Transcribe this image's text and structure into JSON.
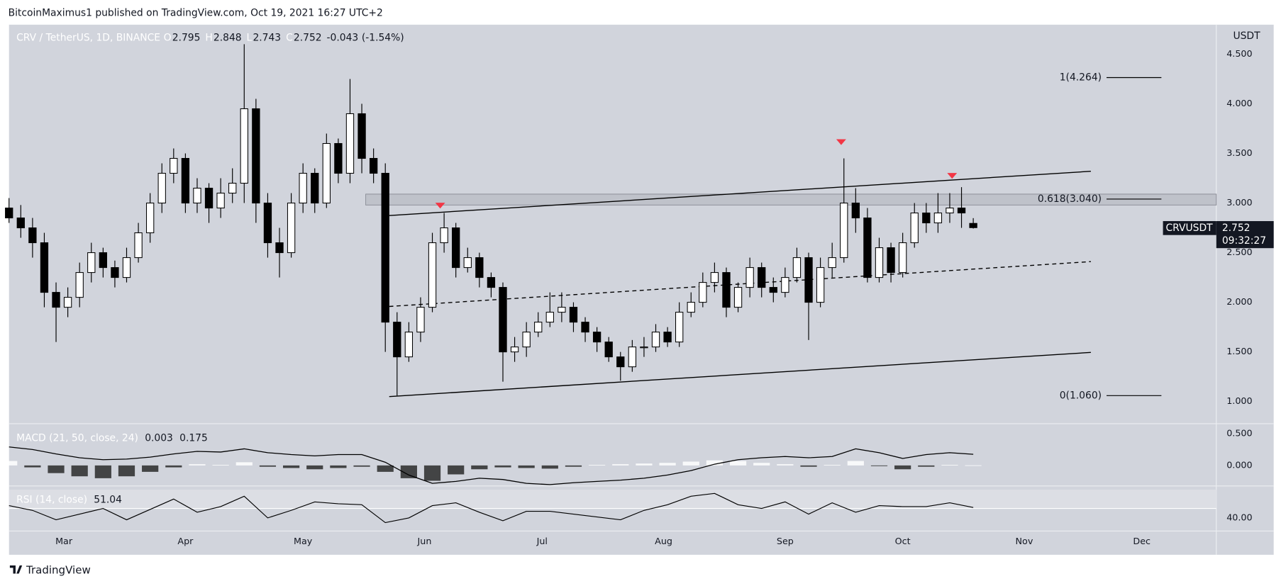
{
  "header": {
    "text": "BitcoinMaximus1 published on TradingView.com, Oct 19, 2021 16:27 UTC+2"
  },
  "footer": {
    "brand": "TradingView"
  },
  "chart_data": [
    {
      "type": "candlestick",
      "legend": {
        "symbol": "CRV / TetherUS, 1D, BINANCE",
        "keys": [
          "O",
          "H",
          "L",
          "C"
        ],
        "o": 2.795,
        "h": 2.848,
        "l": 2.743,
        "c": 2.752,
        "change": -0.043,
        "change_pct_label": "(-1.54%)"
      },
      "unit_label": "USDT",
      "last_price": {
        "symbol": "CRVUSDT",
        "value": 2.752,
        "countdown": "09:32:27"
      },
      "xlim": [
        0,
        308
      ],
      "xticks": [
        {
          "value": 14,
          "label": "Mar"
        },
        {
          "value": 45,
          "label": "Apr"
        },
        {
          "value": 75,
          "label": "May"
        },
        {
          "value": 106,
          "label": "Jun"
        },
        {
          "value": 136,
          "label": "Jul"
        },
        {
          "value": 167,
          "label": "Aug"
        },
        {
          "value": 198,
          "label": "Sep"
        },
        {
          "value": 228,
          "label": "Oct"
        },
        {
          "value": 259,
          "label": "Nov"
        },
        {
          "value": 289,
          "label": "Dec"
        }
      ],
      "ylim": [
        0.777,
        4.797
      ],
      "yticks": [
        {
          "value": 1,
          "label": "1.000"
        },
        {
          "value": 1.5,
          "label": "1.500"
        },
        {
          "value": 2,
          "label": "2.000"
        },
        {
          "value": 2.5,
          "label": "2.500"
        },
        {
          "value": 3,
          "label": "3.000"
        },
        {
          "value": 3.5,
          "label": "3.500"
        },
        {
          "value": 4,
          "label": "4.000"
        },
        {
          "value": 4.5,
          "label": "4.500"
        }
      ],
      "up_color": "#ffffff",
      "down_color": "#000000",
      "x": [
        0,
        3,
        6,
        9,
        12,
        15,
        18,
        21,
        24,
        27,
        30,
        33,
        36,
        39,
        42,
        45,
        48,
        51,
        54,
        57,
        60,
        63,
        66,
        69,
        72,
        75,
        78,
        81,
        84,
        87,
        90,
        93,
        96,
        99,
        102,
        105,
        108,
        111,
        114,
        117,
        120,
        123,
        126,
        129,
        132,
        135,
        138,
        141,
        144,
        147,
        150,
        153,
        156,
        159,
        162,
        165,
        168,
        171,
        174,
        177,
        180,
        183,
        186,
        189,
        192,
        195,
        198,
        201,
        204,
        207,
        210,
        213,
        216,
        219,
        222,
        225,
        228,
        231,
        234,
        237,
        240,
        243,
        246
      ],
      "open": [
        2.95,
        2.85,
        2.75,
        2.6,
        2.1,
        1.95,
        2.05,
        2.3,
        2.5,
        2.35,
        2.25,
        2.45,
        2.7,
        3.0,
        3.3,
        3.45,
        3.0,
        3.15,
        2.95,
        3.1,
        3.2,
        3.95,
        3.0,
        2.6,
        2.5,
        3.0,
        3.3,
        3.0,
        3.6,
        3.3,
        3.9,
        3.45,
        3.3,
        1.8,
        1.45,
        1.7,
        1.95,
        2.6,
        2.75,
        2.35,
        2.45,
        2.25,
        2.15,
        1.5,
        1.55,
        1.7,
        1.8,
        1.9,
        1.95,
        1.8,
        1.7,
        1.6,
        1.45,
        1.35,
        1.55,
        1.55,
        1.7,
        1.6,
        1.9,
        2.0,
        2.2,
        2.3,
        1.95,
        2.15,
        2.35,
        2.15,
        2.1,
        2.25,
        2.45,
        2.0,
        2.35,
        2.45,
        3.0,
        2.85,
        2.25,
        2.55,
        2.3,
        2.6,
        2.9,
        2.8,
        2.9,
        2.95,
        2.795
      ],
      "high": [
        3.05,
        2.98,
        2.85,
        2.7,
        2.2,
        2.15,
        2.4,
        2.6,
        2.55,
        2.42,
        2.55,
        2.8,
        3.1,
        3.4,
        3.55,
        3.5,
        3.25,
        3.2,
        3.25,
        3.35,
        4.6,
        4.05,
        3.1,
        2.75,
        3.1,
        3.4,
        3.35,
        3.7,
        3.65,
        4.25,
        4.0,
        3.55,
        3.4,
        1.9,
        1.8,
        2.05,
        2.7,
        2.9,
        2.8,
        2.55,
        2.5,
        2.3,
        2.2,
        1.65,
        1.8,
        1.9,
        2.1,
        2.1,
        2.0,
        1.85,
        1.75,
        1.65,
        1.5,
        1.62,
        1.65,
        1.78,
        1.75,
        2.0,
        2.1,
        2.3,
        2.4,
        2.35,
        2.2,
        2.45,
        2.4,
        2.25,
        2.35,
        2.55,
        2.5,
        2.45,
        2.6,
        3.45,
        3.15,
        2.95,
        2.65,
        2.6,
        2.7,
        3.0,
        3.0,
        3.1,
        3.1,
        3.16,
        2.848
      ],
      "low": [
        2.8,
        2.65,
        2.45,
        1.95,
        1.6,
        1.85,
        1.95,
        2.2,
        2.25,
        2.15,
        2.2,
        2.4,
        2.6,
        2.9,
        3.2,
        2.9,
        2.9,
        2.8,
        2.85,
        3.0,
        3.0,
        2.8,
        2.45,
        2.25,
        2.45,
        2.9,
        2.9,
        2.95,
        3.2,
        3.2,
        3.3,
        3.2,
        1.5,
        1.06,
        1.4,
        1.6,
        1.9,
        2.5,
        2.25,
        2.3,
        2.15,
        2.05,
        1.2,
        1.4,
        1.45,
        1.65,
        1.75,
        1.8,
        1.7,
        1.6,
        1.5,
        1.4,
        1.21,
        1.3,
        1.45,
        1.5,
        1.55,
        1.55,
        1.85,
        1.95,
        2.1,
        1.85,
        1.9,
        2.05,
        2.05,
        2.0,
        2.05,
        2.2,
        1.62,
        1.95,
        2.25,
        2.4,
        2.7,
        2.2,
        2.2,
        2.2,
        2.25,
        2.55,
        2.7,
        2.7,
        2.8,
        2.75,
        2.743
      ],
      "close": [
        2.85,
        2.75,
        2.6,
        2.1,
        1.95,
        2.05,
        2.3,
        2.5,
        2.35,
        2.25,
        2.45,
        2.7,
        3.0,
        3.3,
        3.45,
        3.0,
        3.15,
        2.95,
        3.1,
        3.2,
        3.95,
        3.0,
        2.6,
        2.5,
        3.0,
        3.3,
        3.0,
        3.6,
        3.3,
        3.9,
        3.45,
        3.3,
        1.8,
        1.45,
        1.7,
        1.95,
        2.6,
        2.75,
        2.35,
        2.45,
        2.25,
        2.15,
        1.5,
        1.55,
        1.7,
        1.8,
        1.9,
        1.95,
        1.8,
        1.7,
        1.6,
        1.45,
        1.35,
        1.55,
        1.55,
        1.7,
        1.6,
        1.9,
        2.0,
        2.2,
        2.3,
        1.95,
        2.15,
        2.35,
        2.15,
        2.1,
        2.25,
        2.45,
        2.0,
        2.35,
        2.45,
        3.0,
        2.85,
        2.25,
        2.55,
        2.3,
        2.6,
        2.9,
        2.8,
        2.9,
        2.95,
        2.9,
        2.752
      ],
      "fib_x": [
        280,
        294
      ],
      "fib_levels": [
        {
          "value": 4.264,
          "label": "1(4.264)"
        },
        {
          "value": 3.04,
          "label": "0.618(3.040)"
        },
        {
          "value": 1.06,
          "label": "0(1.060)"
        }
      ],
      "zone": {
        "x": [
          91,
          308
        ],
        "y": [
          2.98,
          3.09
        ],
        "color": "#b2b5be"
      },
      "trend_lines": [
        {
          "x": [
            97,
            276
          ],
          "y": [
            2.874,
            3.32
          ],
          "dashed": false
        },
        {
          "x": [
            97,
            276
          ],
          "y": [
            1.958,
            2.41
          ],
          "dashed": true
        },
        {
          "x": [
            97,
            276
          ],
          "y": [
            1.05,
            1.495
          ],
          "dashed": false
        }
      ],
      "markers": {
        "x": [
          110,
          212.3,
          240.6
        ],
        "y": [
          2.97,
          3.61,
          3.27
        ],
        "color": "#f23645"
      }
    },
    {
      "type": "macd",
      "title": "MACD (21, 50, close, 24)",
      "legend_values": [
        0.003,
        0.175
      ],
      "xlim": [
        0,
        308
      ],
      "ylim": [
        -0.321,
        0.654
      ],
      "yticks": [
        {
          "value": 0.5,
          "label": "0.500"
        },
        {
          "value": 0,
          "label": "0.000"
        }
      ],
      "x": [
        0,
        6,
        12,
        18,
        24,
        30,
        36,
        42,
        48,
        54,
        60,
        66,
        72,
        78,
        84,
        90,
        96,
        102,
        108,
        114,
        120,
        126,
        132,
        138,
        144,
        150,
        156,
        162,
        168,
        174,
        180,
        186,
        192,
        198,
        204,
        210,
        216,
        222,
        228,
        234,
        240,
        246
      ],
      "histogram": {
        "positive": "#ffffff",
        "negative": "#2a2a2a",
        "values": [
          0.07,
          -0.03,
          -0.12,
          -0.17,
          -0.2,
          -0.17,
          -0.1,
          -0.03,
          0.02,
          0.01,
          0.05,
          -0.02,
          -0.04,
          -0.06,
          -0.04,
          -0.02,
          -0.1,
          -0.2,
          -0.24,
          -0.14,
          -0.06,
          -0.03,
          -0.04,
          -0.05,
          -0.02,
          0.01,
          0.02,
          0.03,
          0.04,
          0.06,
          0.08,
          0.07,
          0.04,
          0.02,
          -0.02,
          0.01,
          0.07,
          -0.01,
          -0.06,
          -0.02,
          0.01,
          0.003
        ]
      },
      "line": {
        "color": "#000000",
        "values": [
          0.29,
          0.25,
          0.18,
          0.12,
          0.09,
          0.1,
          0.13,
          0.18,
          0.22,
          0.21,
          0.26,
          0.2,
          0.17,
          0.15,
          0.17,
          0.17,
          0.05,
          -0.15,
          -0.28,
          -0.25,
          -0.2,
          -0.22,
          -0.28,
          -0.3,
          -0.27,
          -0.25,
          -0.23,
          -0.2,
          -0.15,
          -0.08,
          0.02,
          0.09,
          0.12,
          0.14,
          0.12,
          0.14,
          0.26,
          0.2,
          0.11,
          0.17,
          0.2,
          0.175
        ]
      }
    },
    {
      "type": "rsi",
      "title": "RSI (14, close)",
      "legend_values": [
        51.04
      ],
      "xlim": [
        0,
        308
      ],
      "ylim": [
        26.1,
        73.9
      ],
      "yticks": [
        {
          "value": 40,
          "label": "40.00"
        }
      ],
      "band": [
        50,
        70
      ],
      "x": [
        0,
        6,
        12,
        18,
        24,
        30,
        36,
        42,
        48,
        54,
        60,
        66,
        72,
        78,
        84,
        90,
        96,
        102,
        108,
        114,
        120,
        126,
        132,
        138,
        144,
        150,
        156,
        162,
        168,
        174,
        180,
        186,
        192,
        198,
        204,
        210,
        216,
        222,
        228,
        234,
        240,
        246
      ],
      "line": {
        "color": "#000000",
        "values": [
          53,
          48,
          38,
          44,
          50,
          38,
          49,
          60,
          46,
          52,
          63,
          40,
          48,
          57,
          55,
          54,
          35,
          40,
          53,
          56,
          46,
          37,
          47,
          47,
          44,
          41,
          38,
          48,
          54,
          63,
          66,
          54,
          50,
          57,
          44,
          56,
          46,
          53,
          52,
          52,
          56,
          51.04
        ]
      }
    }
  ]
}
